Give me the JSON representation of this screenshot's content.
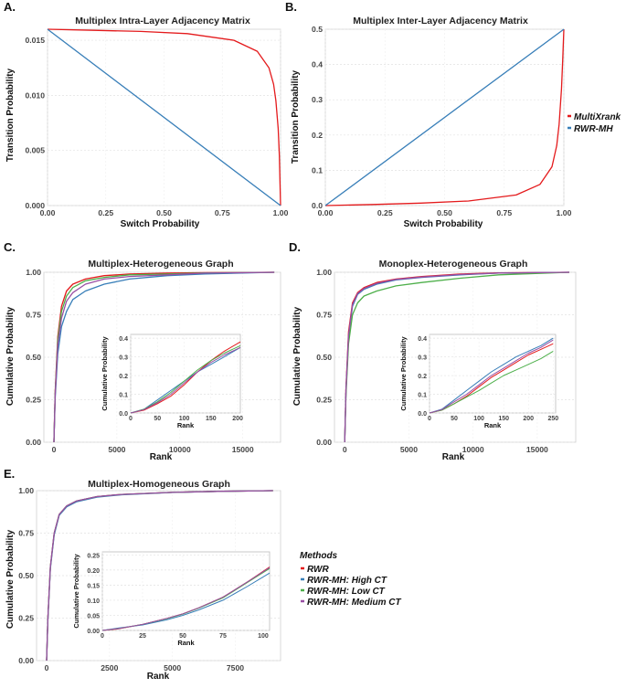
{
  "panels": {
    "A": {
      "letter": "A.",
      "title": "Multiplex Intra-Layer Adjacency Matrix",
      "xlabel": "Switch Probability",
      "ylabel": "Transition Probability"
    },
    "B": {
      "letter": "B.",
      "title": "Multiplex Inter-Layer Adjacency Matrix",
      "xlabel": "Switch Probability",
      "ylabel": "Transition Probability"
    },
    "C": {
      "letter": "C.",
      "title": "Multiplex-Heterogeneous Graph",
      "xlabel": "Rank",
      "ylabel": "Cumulative Probability"
    },
    "D": {
      "letter": "D.",
      "title": "Monoplex-Heterogeneous Graph",
      "xlabel": "Rank",
      "ylabel": "Cumulative Probability"
    },
    "E": {
      "letter": "E.",
      "title": "Multiplex-Homogeneous Graph",
      "xlabel": "Rank",
      "ylabel": "Cumulative Probability"
    }
  },
  "legend_top": {
    "items": [
      {
        "label": "MultiXrank",
        "color": "#e41a1c"
      },
      {
        "label": "RWR-MH",
        "color": "#377eb8"
      }
    ]
  },
  "legend_methods": {
    "title": "Methods",
    "items": [
      {
        "label": "RWR",
        "color": "#e41a1c"
      },
      {
        "label": "RWR-MH: High CT",
        "color": "#377eb8"
      },
      {
        "label": "RWR-MH: Low CT",
        "color": "#4daf4a"
      },
      {
        "label": "RWR-MH: Medium CT",
        "color": "#984ea3"
      }
    ]
  },
  "chart_data": [
    {
      "id": "A",
      "type": "line",
      "title": "Multiplex Intra-Layer Adjacency Matrix",
      "xlabel": "Switch Probability",
      "ylabel": "Transition Probability",
      "xlim": [
        0,
        1
      ],
      "ylim": [
        0,
        0.016
      ],
      "xticks": [
        "0.00",
        "0.25",
        "0.50",
        "0.75",
        "1.00"
      ],
      "yticks": [
        "0.000",
        "0.005",
        "0.010",
        "0.015"
      ],
      "series": [
        {
          "name": "MultiXrank",
          "x": [
            0,
            0.2,
            0.4,
            0.6,
            0.8,
            0.9,
            0.95,
            0.97,
            0.98,
            0.99,
            0.995,
            1
          ],
          "y": [
            0.016,
            0.0159,
            0.0158,
            0.0156,
            0.015,
            0.014,
            0.0125,
            0.011,
            0.0095,
            0.007,
            0.0045,
            0
          ]
        },
        {
          "name": "RWR-MH",
          "x": [
            0,
            1
          ],
          "y": [
            0.016,
            0
          ]
        }
      ]
    },
    {
      "id": "B",
      "type": "line",
      "title": "Multiplex Inter-Layer Adjacency Matrix",
      "xlabel": "Switch Probability",
      "ylabel": "Transition Probability",
      "xlim": [
        0,
        1
      ],
      "ylim": [
        0,
        0.5
      ],
      "xticks": [
        "0.00",
        "0.25",
        "0.50",
        "0.75",
        "1.00"
      ],
      "yticks": [
        "0.0",
        "0.1",
        "0.2",
        "0.3",
        "0.4",
        "0.5"
      ],
      "series": [
        {
          "name": "MultiXrank",
          "x": [
            0,
            0.2,
            0.4,
            0.6,
            0.8,
            0.9,
            0.95,
            0.97,
            0.98,
            0.99,
            0.995,
            1
          ],
          "y": [
            0,
            0.003,
            0.007,
            0.013,
            0.03,
            0.06,
            0.11,
            0.17,
            0.23,
            0.33,
            0.41,
            0.5
          ]
        },
        {
          "name": "RWR-MH",
          "x": [
            0,
            1
          ],
          "y": [
            0,
            0.5
          ]
        }
      ]
    },
    {
      "id": "C",
      "type": "line",
      "title": "Multiplex-Heterogeneous Graph",
      "xlabel": "Rank",
      "ylabel": "Cumulative Probability",
      "xlim": [
        -800,
        18000
      ],
      "ylim": [
        0,
        1
      ],
      "xticks": [
        "0",
        "5000",
        "10000",
        "15000"
      ],
      "yticks": [
        "0.00",
        "0.25",
        "0.50",
        "0.75",
        "1.00"
      ],
      "series": [
        {
          "name": "RWR",
          "x": [
            0,
            100,
            300,
            600,
            1000,
            1500,
            2500,
            4000,
            6000,
            9000,
            12000,
            17500
          ],
          "y": [
            0,
            0.3,
            0.62,
            0.8,
            0.89,
            0.93,
            0.96,
            0.98,
            0.99,
            0.995,
            0.998,
            1
          ]
        },
        {
          "name": "RWR-MH: High CT",
          "x": [
            0,
            100,
            300,
            600,
            1000,
            1500,
            2500,
            4000,
            6000,
            9000,
            12000,
            17500
          ],
          "y": [
            0,
            0.26,
            0.52,
            0.68,
            0.77,
            0.84,
            0.89,
            0.93,
            0.96,
            0.98,
            0.99,
            1
          ]
        },
        {
          "name": "RWR-MH: Low CT",
          "x": [
            0,
            100,
            300,
            600,
            1000,
            1500,
            2500,
            4000,
            6000,
            9000,
            12000,
            17500
          ],
          "y": [
            0,
            0.29,
            0.6,
            0.77,
            0.86,
            0.91,
            0.95,
            0.97,
            0.985,
            0.99,
            0.997,
            1
          ]
        },
        {
          "name": "RWR-MH: Medium CT",
          "x": [
            0,
            100,
            300,
            600,
            1000,
            1500,
            2500,
            4000,
            6000,
            9000,
            12000,
            17500
          ],
          "y": [
            0,
            0.28,
            0.57,
            0.73,
            0.83,
            0.88,
            0.93,
            0.96,
            0.975,
            0.985,
            0.995,
            1
          ]
        }
      ],
      "inset": {
        "xlabel": "Rank",
        "ylabel": "Cumulative Probability",
        "xlim": [
          0,
          205
        ],
        "ylim": [
          0,
          0.42
        ],
        "xticks": [
          "0",
          "50",
          "100",
          "150",
          "200"
        ],
        "yticks": [
          "0.0",
          "0.1",
          "0.2",
          "0.3",
          "0.4"
        ],
        "series": [
          {
            "name": "RWR",
            "x": [
              0,
              25,
              50,
              75,
              100,
              125,
              150,
              175,
              205
            ],
            "y": [
              0,
              0.015,
              0.05,
              0.09,
              0.15,
              0.22,
              0.28,
              0.33,
              0.38
            ]
          },
          {
            "name": "RWR-MH: High CT",
            "x": [
              0,
              25,
              50,
              75,
              100,
              125,
              150,
              175,
              205
            ],
            "y": [
              0,
              0.02,
              0.07,
              0.12,
              0.17,
              0.22,
              0.26,
              0.3,
              0.35
            ]
          },
          {
            "name": "RWR-MH: Low CT",
            "x": [
              0,
              25,
              50,
              75,
              100,
              125,
              150,
              175,
              205
            ],
            "y": [
              0,
              0.02,
              0.06,
              0.11,
              0.17,
              0.23,
              0.28,
              0.32,
              0.36
            ]
          },
          {
            "name": "RWR-MH: Medium CT",
            "x": [
              0,
              25,
              50,
              75,
              100,
              125,
              150,
              175,
              205
            ],
            "y": [
              0,
              0.018,
              0.055,
              0.1,
              0.16,
              0.22,
              0.27,
              0.31,
              0.35
            ]
          }
        ]
      }
    },
    {
      "id": "D",
      "type": "line",
      "title": "Monoplex-Heterogeneous Graph",
      "xlabel": "Rank",
      "ylabel": "Cumulative Probability",
      "xlim": [
        -800,
        18000
      ],
      "ylim": [
        0,
        1
      ],
      "xticks": [
        "0",
        "5000",
        "10000",
        "15000"
      ],
      "yticks": [
        "0.00",
        "0.25",
        "0.50",
        "0.75",
        "1.00"
      ],
      "series": [
        {
          "name": "RWR",
          "x": [
            0,
            100,
            300,
            600,
            1000,
            1500,
            2500,
            4000,
            6000,
            9000,
            12000,
            17500
          ],
          "y": [
            0,
            0.32,
            0.65,
            0.82,
            0.88,
            0.91,
            0.94,
            0.96,
            0.975,
            0.99,
            0.996,
            1
          ]
        },
        {
          "name": "RWR-MH: High CT",
          "x": [
            0,
            100,
            300,
            600,
            1000,
            1500,
            2500,
            4000,
            6000,
            9000,
            12000,
            17500
          ],
          "y": [
            0,
            0.3,
            0.62,
            0.8,
            0.87,
            0.9,
            0.93,
            0.955,
            0.97,
            0.985,
            0.995,
            1
          ]
        },
        {
          "name": "RWR-MH: Low CT",
          "x": [
            0,
            100,
            300,
            600,
            1000,
            1500,
            2500,
            4000,
            6000,
            9000,
            12000,
            17500
          ],
          "y": [
            0,
            0.28,
            0.58,
            0.75,
            0.82,
            0.86,
            0.89,
            0.92,
            0.94,
            0.965,
            0.985,
            1
          ]
        },
        {
          "name": "RWR-MH: Medium CT",
          "x": [
            0,
            100,
            300,
            600,
            1000,
            1500,
            2500,
            4000,
            6000,
            9000,
            12000,
            17500
          ],
          "y": [
            0,
            0.31,
            0.63,
            0.81,
            0.875,
            0.905,
            0.935,
            0.958,
            0.972,
            0.987,
            0.995,
            1
          ]
        }
      ],
      "inset": {
        "xlabel": "Rank",
        "ylabel": "Cumulative Probability",
        "xlim": [
          0,
          255
        ],
        "ylim": [
          0,
          0.42
        ],
        "xticks": [
          "0",
          "50",
          "100",
          "150",
          "200",
          "250"
        ],
        "yticks": [
          "0.0",
          "0.1",
          "0.2",
          "0.3",
          "0.4"
        ],
        "series": [
          {
            "name": "RWR",
            "x": [
              0,
              25,
              50,
              75,
              100,
              125,
              150,
              175,
              200,
              225,
              250
            ],
            "y": [
              0,
              0.015,
              0.05,
              0.09,
              0.14,
              0.19,
              0.23,
              0.27,
              0.31,
              0.34,
              0.37
            ]
          },
          {
            "name": "RWR-MH: High CT",
            "x": [
              0,
              25,
              50,
              75,
              100,
              125,
              150,
              175,
              200,
              225,
              250
            ],
            "y": [
              0,
              0.02,
              0.07,
              0.12,
              0.17,
              0.22,
              0.26,
              0.3,
              0.33,
              0.36,
              0.4
            ]
          },
          {
            "name": "RWR-MH: Low CT",
            "x": [
              0,
              25,
              50,
              75,
              100,
              125,
              150,
              175,
              200,
              225,
              250
            ],
            "y": [
              0,
              0.015,
              0.05,
              0.085,
              0.12,
              0.16,
              0.2,
              0.23,
              0.26,
              0.29,
              0.33
            ]
          },
          {
            "name": "RWR-MH: Medium CT",
            "x": [
              0,
              25,
              50,
              75,
              100,
              125,
              150,
              175,
              200,
              225,
              250
            ],
            "y": [
              0,
              0.018,
              0.06,
              0.1,
              0.15,
              0.2,
              0.24,
              0.28,
              0.32,
              0.35,
              0.39
            ]
          }
        ]
      }
    },
    {
      "id": "E",
      "type": "line",
      "title": "Multiplex-Homogeneous Graph",
      "xlabel": "Rank",
      "ylabel": "Cumulative Probability",
      "xlim": [
        -400,
        9300
      ],
      "ylim": [
        0,
        1
      ],
      "xticks": [
        "0",
        "2500",
        "5000",
        "7500"
      ],
      "yticks": [
        "0.00",
        "0.25",
        "0.50",
        "0.75",
        "1.00"
      ],
      "series": [
        {
          "name": "RWR",
          "x": [
            0,
            50,
            150,
            300,
            500,
            800,
            1200,
            2000,
            3000,
            5000,
            7000,
            9000
          ],
          "y": [
            0,
            0.25,
            0.55,
            0.75,
            0.86,
            0.91,
            0.94,
            0.965,
            0.978,
            0.99,
            0.996,
            1
          ]
        },
        {
          "name": "RWR-MH: High CT",
          "x": [
            0,
            50,
            150,
            300,
            500,
            800,
            1200,
            2000,
            3000,
            5000,
            7000,
            9000
          ],
          "y": [
            0,
            0.24,
            0.54,
            0.74,
            0.855,
            0.905,
            0.935,
            0.962,
            0.976,
            0.989,
            0.996,
            1
          ]
        },
        {
          "name": "RWR-MH: Low CT",
          "x": [
            0,
            50,
            150,
            300,
            500,
            800,
            1200,
            2000,
            3000,
            5000,
            7000,
            9000
          ],
          "y": [
            0,
            0.25,
            0.55,
            0.75,
            0.86,
            0.91,
            0.94,
            0.965,
            0.978,
            0.99,
            0.996,
            1
          ]
        },
        {
          "name": "RWR-MH: Medium CT",
          "x": [
            0,
            50,
            150,
            300,
            500,
            800,
            1200,
            2000,
            3000,
            5000,
            7000,
            9000
          ],
          "y": [
            0,
            0.25,
            0.55,
            0.75,
            0.86,
            0.91,
            0.94,
            0.965,
            0.978,
            0.99,
            0.996,
            1
          ]
        }
      ],
      "inset": {
        "xlabel": "Rank",
        "ylabel": "Cumulative Probability",
        "xlim": [
          0,
          104
        ],
        "ylim": [
          0,
          0.26
        ],
        "xticks": [
          "0",
          "25",
          "50",
          "75",
          "100"
        ],
        "yticks": [
          "0.00",
          "0.05",
          "0.10",
          "0.15",
          "0.20",
          "0.25"
        ],
        "series": [
          {
            "name": "RWR",
            "x": [
              0,
              10,
              25,
              40,
              50,
              60,
              75,
              90,
              104
            ],
            "y": [
              0,
              0.005,
              0.02,
              0.04,
              0.055,
              0.075,
              0.11,
              0.16,
              0.21
            ]
          },
          {
            "name": "RWR-MH: High CT",
            "x": [
              0,
              10,
              25,
              40,
              50,
              60,
              75,
              90,
              104
            ],
            "y": [
              0,
              0.008,
              0.018,
              0.035,
              0.05,
              0.068,
              0.1,
              0.145,
              0.19
            ]
          },
          {
            "name": "RWR-MH: Low CT",
            "x": [
              0,
              10,
              25,
              40,
              50,
              60,
              75,
              90,
              104
            ],
            "y": [
              0,
              0.006,
              0.02,
              0.039,
              0.054,
              0.074,
              0.108,
              0.158,
              0.205
            ]
          },
          {
            "name": "RWR-MH: Medium CT",
            "x": [
              0,
              10,
              25,
              40,
              50,
              60,
              75,
              90,
              104
            ],
            "y": [
              0,
              0.006,
              0.02,
              0.04,
              0.055,
              0.075,
              0.11,
              0.16,
              0.208
            ]
          }
        ]
      }
    }
  ]
}
